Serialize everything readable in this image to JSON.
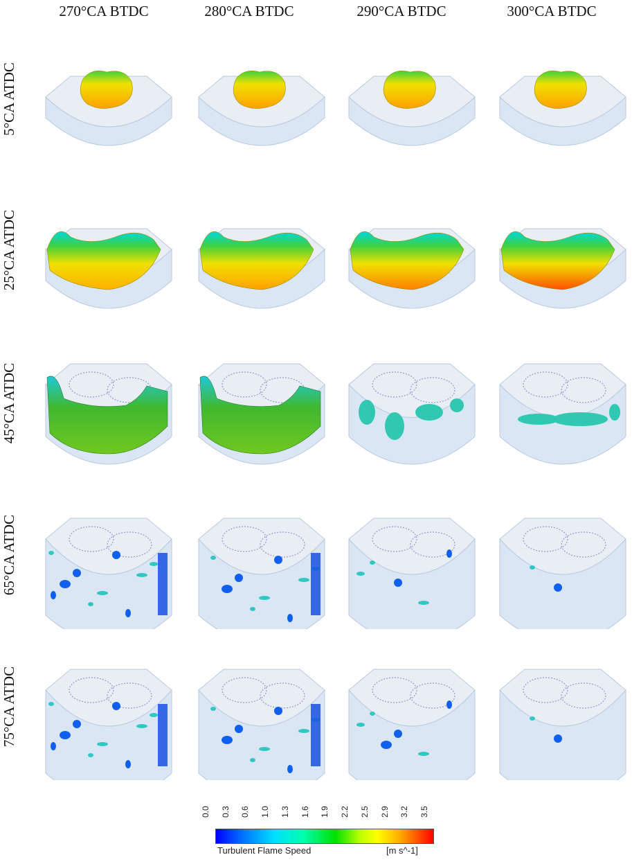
{
  "columns": [
    "270°CA BTDC",
    "280°CA BTDC",
    "290°CA BTDC",
    "300°CA BTDC"
  ],
  "rows": [
    "5°CA ATDC",
    "25°CA ATDC",
    "45°CA ATDC",
    "65°CA ATDC",
    "75°CA ATDC"
  ],
  "legend": {
    "title": "Turbulent Flame Speed",
    "unit": "[m s^-1]",
    "ticks": [
      "0.0",
      "0.3",
      "0.6",
      "1.0",
      "1.3",
      "1.6",
      "1.9",
      "2.2",
      "2.5",
      "2.9",
      "3.2",
      "3.5"
    ],
    "range": [
      0.0,
      3.5
    ],
    "colors": [
      "#0000ff",
      "#00e0ff",
      "#00e000",
      "#ffff00",
      "#ff0000"
    ]
  },
  "colors": {
    "chamber_fill": "#dbe6f5",
    "chamber_edge": "#b9c9e0",
    "chamber_top": "#e9eef5"
  }
}
